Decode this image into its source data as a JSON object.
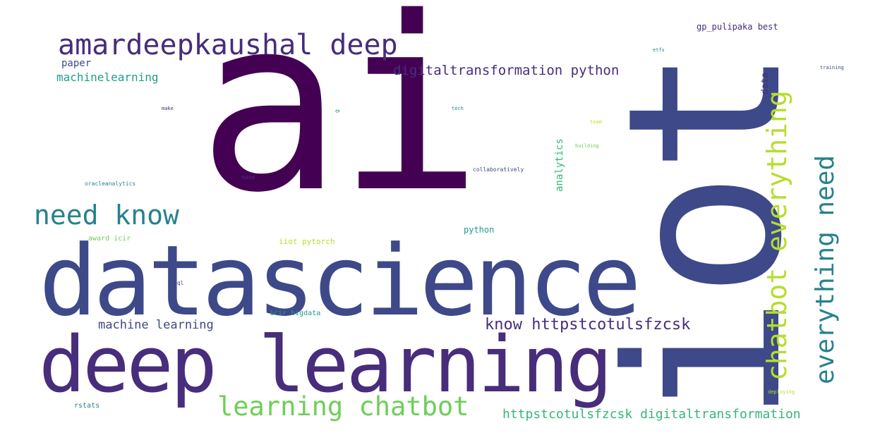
{
  "palette": {
    "dark_purple": "#440154",
    "purple": "#472d7b",
    "indigo": "#3e4989",
    "blue": "#31688e",
    "teal": "#26828e",
    "green_teal": "#1f9e89",
    "green": "#35b779",
    "light_green": "#6ece58",
    "yellow_green": "#b5de2b",
    "yellow": "#fde725"
  },
  "words": [
    {
      "text": "ai"
    },
    {
      "text": "iot"
    },
    {
      "text": "datascience"
    },
    {
      "text": "deep learning"
    },
    {
      "text": "amardeepkaushal deep"
    },
    {
      "text": "need know"
    },
    {
      "text": "learning chatbot"
    },
    {
      "text": "chatbot everything"
    },
    {
      "text": "everything need"
    },
    {
      "text": "know httpstcotulsfzcsk"
    },
    {
      "text": "digitaltransformation python"
    },
    {
      "text": "httpstcotulsfzcsk digitaltransformation"
    },
    {
      "text": "machine learning"
    },
    {
      "text": "paper"
    },
    {
      "text": "machinelearning"
    },
    {
      "text": "analytics"
    },
    {
      "text": "data"
    },
    {
      "text": "gp_pulipaka best"
    },
    {
      "text": "python"
    },
    {
      "text": "iiot pytorch"
    },
    {
      "text": "icir bigdata"
    },
    {
      "text": "award icir"
    },
    {
      "text": "rstats"
    },
    {
      "text": "sql"
    },
    {
      "text": "oracleanalytics"
    },
    {
      "text": "made"
    },
    {
      "text": "make"
    },
    {
      "text": "tech"
    },
    {
      "text": "collaboratively"
    },
    {
      "text": "building"
    },
    {
      "text": "team"
    },
    {
      "text": "etfs"
    },
    {
      "text": "training"
    },
    {
      "text": "deploying"
    },
    {
      "text": "g"
    }
  ]
}
